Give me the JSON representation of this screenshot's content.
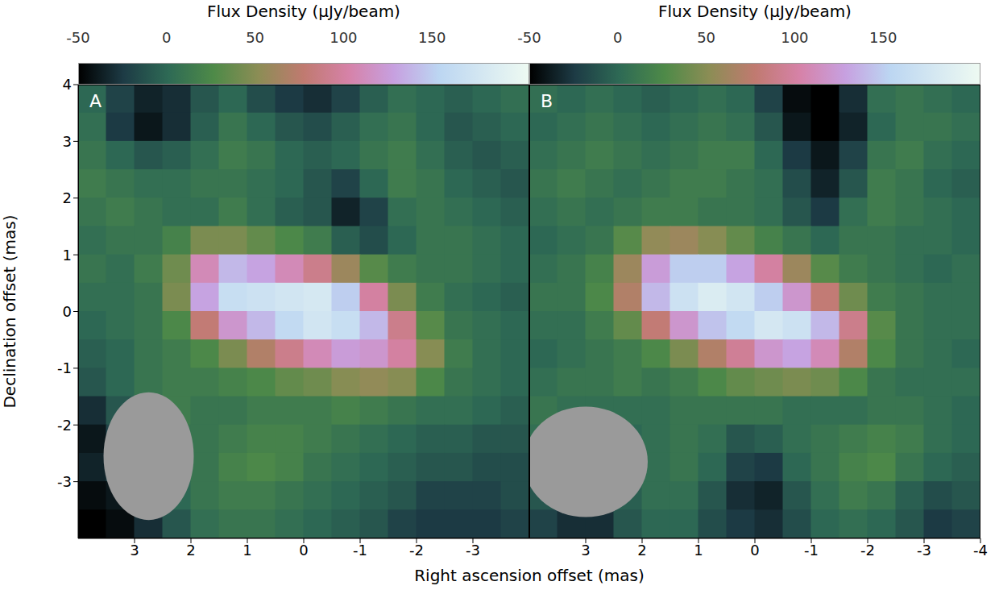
{
  "chart_data": [
    {
      "type": "heatmap",
      "title": "A",
      "xlabel": "Right ascension offset (mas)",
      "ylabel": "Declination offset (mas)",
      "xlim": [
        4,
        -4
      ],
      "ylim": [
        -4,
        4
      ],
      "xticks": [
        3,
        2,
        1,
        0,
        -1,
        -2,
        -3
      ],
      "yticks": [
        -3,
        -2,
        -1,
        0,
        1,
        2,
        3,
        4
      ],
      "reference_lines": {
        "x": 0,
        "y": 0
      },
      "beam": {
        "x": 2.75,
        "y": -2.55,
        "width": 1.6,
        "height": 2.25
      },
      "colorbar": {
        "label": "Flux Density (μJy/beam)",
        "range": [
          -50,
          205
        ],
        "ticks": [
          -50,
          0,
          50,
          100,
          150
        ]
      },
      "x": [
        3.75,
        3.25,
        2.75,
        2.25,
        1.75,
        1.25,
        0.75,
        0.25,
        -0.25,
        -0.75,
        -1.25,
        -1.75,
        -2.25,
        -2.75,
        -3.25,
        -3.75
      ],
      "y": [
        3.75,
        3.25,
        2.75,
        2.25,
        1.75,
        1.25,
        0.75,
        0.25,
        -0.25,
        -0.75,
        -1.25,
        -1.75,
        -2.25,
        -2.75,
        -3.25,
        -3.75
      ],
      "z": [
        [
          0,
          -20,
          -35,
          -30,
          -10,
          0,
          -15,
          -25,
          -30,
          -20,
          -5,
          5,
          0,
          -5,
          0,
          5
        ],
        [
          5,
          -25,
          -40,
          -30,
          -5,
          10,
          0,
          -10,
          -15,
          -5,
          5,
          10,
          0,
          -10,
          -5,
          0
        ],
        [
          10,
          0,
          -10,
          -5,
          5,
          15,
          10,
          0,
          -5,
          0,
          10,
          15,
          5,
          -5,
          -10,
          -5
        ],
        [
          15,
          10,
          5,
          5,
          10,
          10,
          5,
          0,
          -10,
          -20,
          0,
          15,
          10,
          0,
          -5,
          -10
        ],
        [
          10,
          15,
          10,
          5,
          5,
          15,
          5,
          -5,
          -10,
          -35,
          -20,
          5,
          10,
          5,
          0,
          -5
        ],
        [
          5,
          10,
          10,
          20,
          45,
          45,
          35,
          25,
          15,
          -5,
          -15,
          0,
          10,
          10,
          5,
          0
        ],
        [
          10,
          5,
          15,
          40,
          110,
          140,
          130,
          110,
          90,
          60,
          30,
          15,
          10,
          10,
          5,
          0
        ],
        [
          5,
          5,
          10,
          45,
          130,
          165,
          170,
          175,
          180,
          150,
          100,
          45,
          15,
          5,
          0,
          -5
        ],
        [
          0,
          5,
          10,
          25,
          80,
          120,
          140,
          160,
          175,
          165,
          140,
          90,
          30,
          10,
          5,
          0
        ],
        [
          -5,
          0,
          10,
          15,
          25,
          45,
          70,
          90,
          110,
          125,
          120,
          100,
          50,
          15,
          5,
          0
        ],
        [
          -10,
          0,
          10,
          15,
          15,
          20,
          25,
          35,
          40,
          50,
          55,
          50,
          25,
          10,
          5,
          0
        ],
        [
          -30,
          -10,
          5,
          15,
          10,
          10,
          15,
          15,
          15,
          20,
          15,
          10,
          5,
          5,
          0,
          -5
        ],
        [
          -40,
          -20,
          0,
          10,
          10,
          15,
          20,
          20,
          15,
          10,
          5,
          0,
          -5,
          -5,
          -10,
          -10
        ],
        [
          -35,
          -20,
          -5,
          5,
          10,
          20,
          25,
          20,
          10,
          5,
          0,
          -5,
          -10,
          -10,
          -15,
          -15
        ],
        [
          -45,
          -40,
          -20,
          0,
          10,
          15,
          15,
          10,
          5,
          0,
          -5,
          -10,
          -20,
          -20,
          -20,
          -15
        ],
        [
          -50,
          -45,
          -30,
          -10,
          5,
          10,
          10,
          5,
          0,
          -5,
          -10,
          -20,
          -25,
          -25,
          -25,
          -20
        ]
      ]
    },
    {
      "type": "heatmap",
      "title": "B",
      "tick_labels": "x",
      "xlim": [
        4,
        -4
      ],
      "ylim": [
        -4,
        4
      ],
      "xticks": [
        3,
        2,
        1,
        0,
        -1,
        -2,
        -3,
        -4
      ],
      "yticks": [
        -3,
        -2,
        -1,
        0,
        1,
        2,
        3,
        4
      ],
      "reference_lines": {
        "x": 0,
        "y": 0
      },
      "beam": {
        "x": 3.0,
        "y": -2.65,
        "width": 2.2,
        "height": 1.95
      },
      "colorbar": {
        "label": "Flux Density (μJy/beam)",
        "range": [
          -50,
          205
        ],
        "ticks": [
          -50,
          0,
          50,
          100,
          150
        ]
      },
      "x": [
        3.75,
        3.25,
        2.75,
        2.25,
        1.75,
        1.25,
        0.75,
        0.25,
        -0.25,
        -0.75,
        -1.25,
        -1.75,
        -2.25,
        -2.75,
        -3.25,
        -3.75
      ],
      "y": [
        3.75,
        3.25,
        2.75,
        2.25,
        1.75,
        1.25,
        0.75,
        0.25,
        -0.25,
        -0.75,
        -1.25,
        -1.75,
        -2.25,
        -2.75,
        -3.25,
        -3.75
      ],
      "z": [
        [
          5,
          0,
          5,
          0,
          -5,
          0,
          5,
          0,
          -20,
          -45,
          -50,
          -30,
          5,
          10,
          5,
          0
        ],
        [
          0,
          5,
          10,
          5,
          0,
          5,
          10,
          5,
          -10,
          -40,
          -50,
          -35,
          0,
          10,
          10,
          5
        ],
        [
          5,
          10,
          15,
          10,
          5,
          10,
          15,
          15,
          0,
          -25,
          -40,
          -20,
          10,
          15,
          5,
          0
        ],
        [
          10,
          15,
          10,
          5,
          10,
          15,
          15,
          10,
          5,
          -15,
          -35,
          -10,
          15,
          10,
          0,
          -5
        ],
        [
          5,
          10,
          5,
          10,
          15,
          15,
          10,
          10,
          5,
          -10,
          -25,
          5,
          15,
          10,
          5,
          0
        ],
        [
          0,
          5,
          10,
          30,
          55,
          60,
          50,
          35,
          20,
          10,
          0,
          10,
          10,
          5,
          5,
          0
        ],
        [
          5,
          10,
          20,
          60,
          125,
          150,
          150,
          130,
          100,
          60,
          30,
          15,
          10,
          5,
          0,
          5
        ],
        [
          10,
          10,
          25,
          70,
          140,
          170,
          185,
          175,
          150,
          120,
          80,
          40,
          15,
          10,
          5,
          5
        ],
        [
          5,
          5,
          15,
          35,
          80,
          120,
          145,
          160,
          178,
          170,
          140,
          90,
          30,
          10,
          5,
          5
        ],
        [
          0,
          5,
          10,
          15,
          25,
          45,
          70,
          95,
          120,
          130,
          110,
          70,
          25,
          10,
          5,
          0
        ],
        [
          5,
          10,
          10,
          15,
          10,
          15,
          25,
          35,
          40,
          45,
          40,
          25,
          10,
          5,
          5,
          5
        ],
        [
          10,
          5,
          5,
          5,
          5,
          10,
          10,
          10,
          10,
          5,
          5,
          5,
          10,
          10,
          5,
          0
        ],
        [
          5,
          0,
          -5,
          0,
          5,
          10,
          5,
          -10,
          -5,
          5,
          10,
          15,
          20,
          15,
          5,
          0
        ],
        [
          0,
          -10,
          -15,
          0,
          5,
          10,
          0,
          -20,
          -25,
          0,
          10,
          20,
          25,
          10,
          0,
          -5
        ],
        [
          -10,
          -20,
          -25,
          -5,
          5,
          5,
          -10,
          -30,
          -35,
          -10,
          5,
          15,
          10,
          -5,
          -15,
          -10
        ],
        [
          -20,
          -30,
          -30,
          -10,
          0,
          0,
          -15,
          -25,
          -30,
          -15,
          0,
          5,
          0,
          -10,
          -25,
          -20
        ]
      ]
    }
  ]
}
